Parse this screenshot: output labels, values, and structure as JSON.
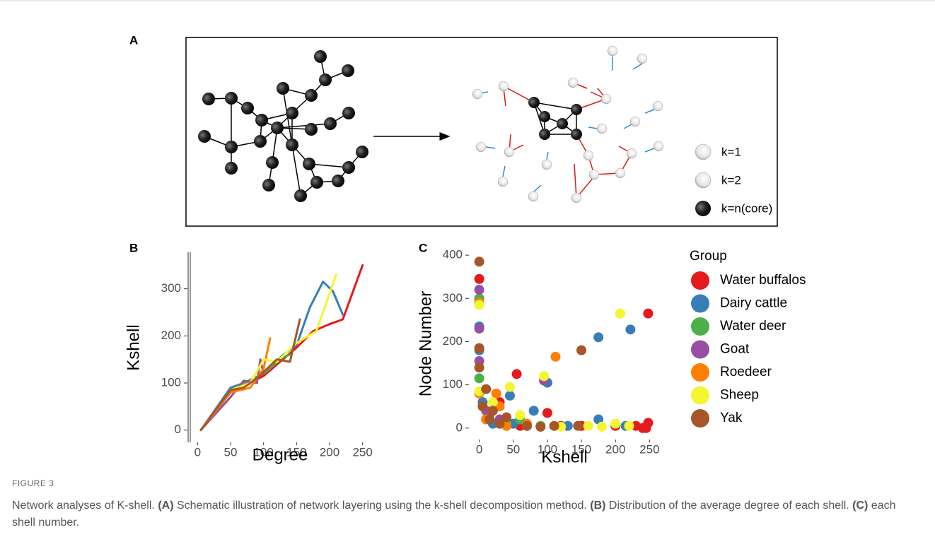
{
  "panel_a": {
    "label": "A",
    "legend": [
      "k=1",
      "k=2",
      "k=n(core)"
    ]
  },
  "chart_data": [
    {
      "type": "line",
      "label": "B",
      "x_label": "Degree",
      "y_label": "Kshell",
      "xlim": [
        -10,
        260
      ],
      "ylim": [
        -20,
        370
      ],
      "xticks": [
        0,
        50,
        100,
        150,
        200,
        250
      ],
      "yticks": [
        0,
        100,
        200,
        300
      ],
      "series": [
        {
          "color": "#e41a1c",
          "x": [
            5,
            50,
            100,
            150,
            175,
            200,
            220,
            250
          ],
          "values": [
            0,
            80,
            115,
            175,
            210,
            225,
            235,
            350
          ]
        },
        {
          "color": "#377eb8",
          "x": [
            5,
            50,
            70,
            100,
            130,
            150,
            170,
            190,
            205,
            220
          ],
          "values": [
            0,
            90,
            100,
            120,
            160,
            180,
            260,
            315,
            295,
            245
          ]
        },
        {
          "color": "#4daf4a",
          "x": [
            5,
            50,
            100,
            130,
            140
          ],
          "values": [
            0,
            85,
            120,
            155,
            160
          ]
        },
        {
          "color": "#984ea3",
          "x": [
            5,
            50,
            70,
            90,
            95,
            100
          ],
          "values": [
            0,
            70,
            105,
            100,
            150,
            120
          ]
        },
        {
          "color": "#ff7f00",
          "x": [
            5,
            50,
            80,
            100,
            110
          ],
          "values": [
            0,
            80,
            90,
            130,
            195
          ]
        },
        {
          "color": "#f5f531",
          "x": [
            5,
            50,
            80,
            100,
            120,
            150,
            180,
            210
          ],
          "values": [
            0,
            85,
            100,
            150,
            145,
            185,
            210,
            330
          ]
        },
        {
          "color": "#a65628",
          "x": [
            5,
            50,
            70,
            90,
            120,
            140,
            155
          ],
          "values": [
            0,
            85,
            90,
            110,
            150,
            145,
            235
          ]
        }
      ]
    },
    {
      "type": "scatter",
      "label": "C",
      "x_label": "Kshell",
      "y_label": "Node Number",
      "legend_title": "Group",
      "xlim": [
        -10,
        260
      ],
      "ylim": [
        -20,
        410
      ],
      "xticks": [
        0,
        50,
        100,
        150,
        200,
        250
      ],
      "yticks": [
        0,
        100,
        200,
        300,
        400
      ],
      "series": [
        {
          "name": "Water buffalos",
          "color": "#e41a1c",
          "x": [
            0,
            0,
            55,
            100,
            230,
            240,
            248,
            248,
            150,
            200,
            30,
            10,
            60,
            120,
            245
          ],
          "values": [
            345,
            300,
            125,
            35,
            5,
            0,
            12,
            265,
            5,
            5,
            60,
            20,
            5,
            5,
            0
          ]
        },
        {
          "name": "Dairy cattle",
          "color": "#377eb8",
          "x": [
            0,
            0,
            100,
            45,
            175,
            222,
            175,
            215,
            50,
            130,
            5,
            80,
            20
          ],
          "values": [
            235,
            180,
            105,
            75,
            210,
            228,
            20,
            5,
            10,
            5,
            60,
            40,
            10
          ]
        },
        {
          "name": "Water deer",
          "color": "#4daf4a",
          "x": [
            0,
            0,
            5,
            40,
            90,
            15,
            60
          ],
          "values": [
            300,
            115,
            50,
            10,
            5,
            30,
            20
          ]
        },
        {
          "name": "Goat",
          "color": "#984ea3",
          "x": [
            0,
            0,
            0,
            95,
            10,
            30,
            70
          ],
          "values": [
            320,
            230,
            155,
            110,
            40,
            20,
            5
          ]
        },
        {
          "name": "Roedeer",
          "color": "#ff7f00",
          "x": [
            0,
            0,
            25,
            112,
            30,
            40,
            10,
            70
          ],
          "values": [
            290,
            80,
            80,
            165,
            50,
            5,
            20,
            10
          ]
        },
        {
          "name": "Sheep",
          "color": "#f5f531",
          "x": [
            0,
            0,
            45,
            95,
            207,
            160,
            200,
            180,
            120,
            20,
            60,
            220
          ],
          "values": [
            285,
            85,
            95,
            120,
            265,
            5,
            10,
            3,
            3,
            60,
            30,
            5
          ]
        },
        {
          "name": "Yak",
          "color": "#a65628",
          "x": [
            0,
            0,
            0,
            150,
            5,
            10,
            20,
            30,
            70,
            110,
            145,
            40,
            15,
            90
          ],
          "values": [
            385,
            185,
            140,
            180,
            50,
            90,
            40,
            10,
            5,
            5,
            5,
            25,
            20,
            3
          ]
        }
      ]
    }
  ],
  "caption": {
    "label": "FIGURE 3",
    "segments": [
      "Network analyses of K-shell. ",
      "(A)",
      " Schematic illustration of network layering using the k-shell decomposition method. ",
      "(B)",
      " Distribution of the average degree of each shell. ",
      "(C)",
      " each shell number."
    ]
  }
}
